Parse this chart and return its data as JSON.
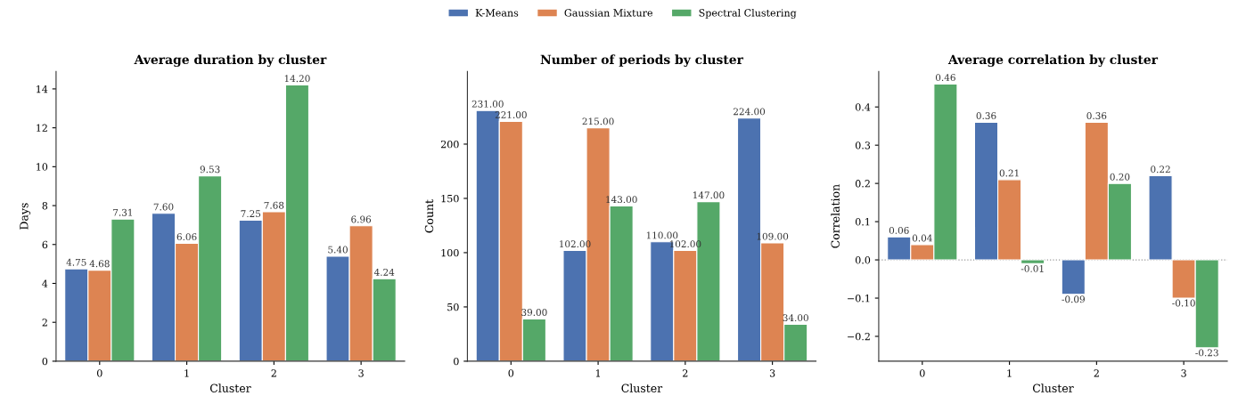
{
  "chart_data": [
    {
      "type": "bar",
      "title": "Average duration by cluster",
      "xlabel": "Cluster",
      "ylabel": "Days",
      "categories": [
        "0",
        "1",
        "2",
        "3"
      ],
      "series": [
        {
          "name": "K-Means",
          "color": "#4c72b0",
          "values": [
            4.75,
            7.6,
            7.25,
            5.4
          ],
          "value_labels": [
            "4.75",
            "7.60",
            "7.25",
            "5.40"
          ]
        },
        {
          "name": "Gaussian Mixture",
          "color": "#dd8452",
          "values": [
            4.68,
            6.06,
            7.68,
            6.96
          ],
          "value_labels": [
            "4.68",
            "6.06",
            "7.68",
            "6.96"
          ]
        },
        {
          "name": "Spectral Clustering",
          "color": "#55a868",
          "values": [
            7.31,
            9.53,
            14.2,
            4.24
          ],
          "value_labels": [
            "7.31",
            "9.53",
            "14.20",
            "4.24"
          ]
        }
      ],
      "ylim": [
        0,
        14.9
      ],
      "yticks": [
        0,
        2,
        4,
        6,
        8,
        10,
        12,
        14
      ],
      "legend": "top",
      "grid": false
    },
    {
      "type": "bar",
      "title": "Number of periods by cluster",
      "xlabel": "Cluster",
      "ylabel": "Count",
      "categories": [
        "0",
        "1",
        "2",
        "3"
      ],
      "series": [
        {
          "color": "#4c72b0",
          "values": [
            231,
            102,
            110,
            224
          ],
          "value_labels": [
            "231.00",
            "102.00",
            "110.00",
            "224.00"
          ]
        },
        {
          "color": "#dd8452",
          "values": [
            221,
            215,
            102,
            109
          ],
          "value_labels": [
            "221.00",
            "215.00",
            "102.00",
            "109.00"
          ]
        },
        {
          "color": "#55a868",
          "values": [
            39,
            143,
            147,
            34
          ],
          "value_labels": [
            "39.00",
            "143.00",
            "147.00",
            "34.00"
          ]
        }
      ],
      "ylim": [
        0,
        267
      ],
      "yticks": [
        0,
        50,
        100,
        150,
        200
      ],
      "grid": false
    },
    {
      "type": "bar",
      "title": "Average correlation by cluster",
      "xlabel": "Cluster",
      "ylabel": "Correlation",
      "categories": [
        "0",
        "1",
        "2",
        "3"
      ],
      "series": [
        {
          "color": "#4c72b0",
          "values": [
            0.06,
            0.36,
            -0.09,
            0.22
          ],
          "value_labels": [
            "0.06",
            "0.36",
            "-0.09",
            "0.22"
          ]
        },
        {
          "color": "#dd8452",
          "values": [
            0.04,
            0.21,
            0.36,
            -0.1
          ],
          "value_labels": [
            "0.04",
            "0.21",
            "0.36",
            "-0.10"
          ]
        },
        {
          "color": "#55a868",
          "values": [
            0.46,
            -0.01,
            0.2,
            -0.23
          ],
          "value_labels": [
            "0.46",
            "-0.01",
            "0.20",
            "-0.23"
          ]
        }
      ],
      "ylim": [
        -0.265,
        0.493
      ],
      "yticks": [
        {
          "value": -0.2,
          "label": "−0.2"
        },
        {
          "value": -0.1,
          "label": "−0.1"
        },
        {
          "value": 0.0,
          "label": "0.0"
        },
        {
          "value": 0.1,
          "label": "0.1"
        },
        {
          "value": 0.2,
          "label": "0.2"
        },
        {
          "value": 0.3,
          "label": "0.3"
        },
        {
          "value": 0.4,
          "label": "0.4"
        }
      ],
      "ref_lines": [
        {
          "axis": "y",
          "value": 0,
          "color": "#999999",
          "line_style": "dotted"
        }
      ],
      "grid": false
    }
  ]
}
